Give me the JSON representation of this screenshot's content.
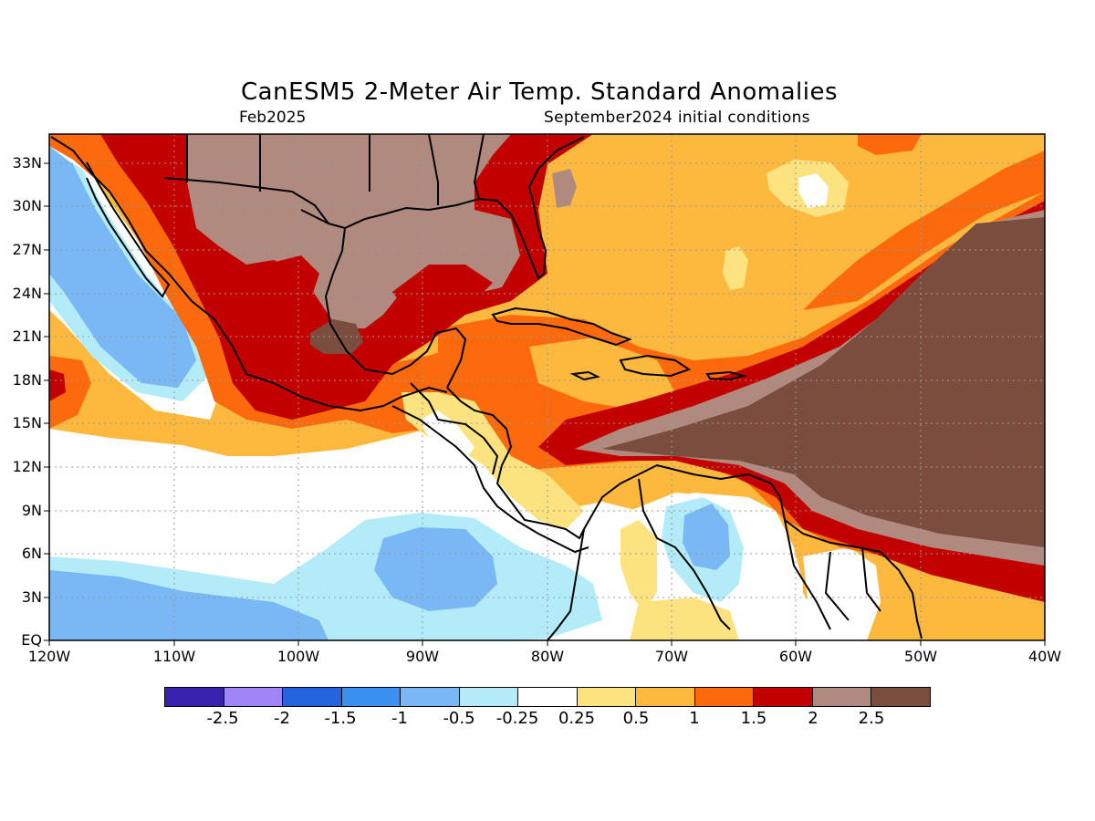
{
  "header": {
    "title": "CanESM5 2-Meter Air Temp. Standard Anomalies",
    "valid_month": "Feb2025",
    "initial_conditions": "September2024 initial conditions"
  },
  "map": {
    "lat_labels": [
      "33N",
      "30N",
      "27N",
      "24N",
      "21N",
      "18N",
      "15N",
      "12N",
      "9N",
      "6N",
      "3N",
      "EQ"
    ],
    "lon_labels": [
      "120W",
      "110W",
      "100W",
      "90W",
      "80W",
      "70W",
      "60W",
      "50W",
      "40W"
    ],
    "land_color": "#000000",
    "grid": "dotted"
  },
  "colorbar": {
    "colors": [
      "#3a22b0",
      "#9f85f5",
      "#2464dd",
      "#3d91f0",
      "#79b8f4",
      "#b3ecf8",
      "#ffffff",
      "#fde37f",
      "#fdb93e",
      "#fc6a0d",
      "#c20000",
      "#b08a7f",
      "#7a4d3f"
    ],
    "labels": [
      "-2.5",
      "-2",
      "-1.5",
      "-1",
      "-0.5",
      "-0.25",
      "0.25",
      "0.5",
      "1",
      "1.5",
      "2",
      "2.5"
    ]
  }
}
